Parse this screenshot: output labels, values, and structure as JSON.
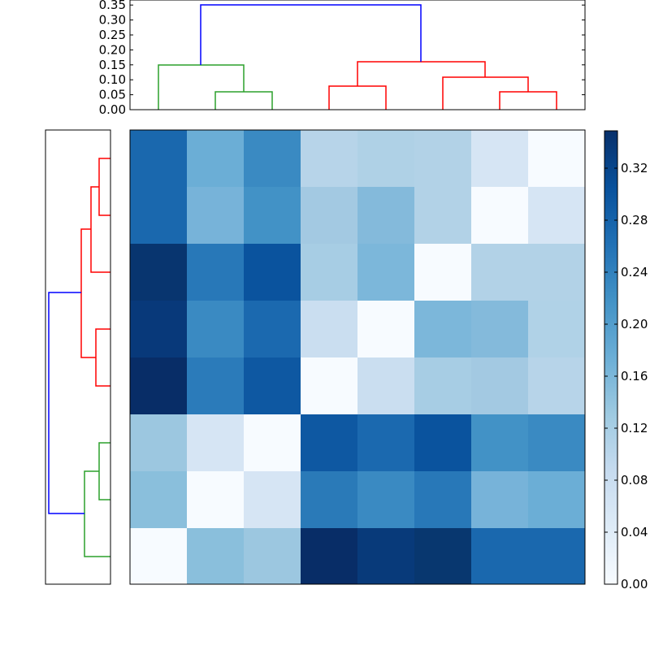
{
  "chart_data": [
    {
      "type": "dendrogram",
      "name": "column-dendrogram",
      "orientation": "top",
      "ylim": [
        0,
        0.36
      ],
      "yticks": [
        "0.00",
        "0.05",
        "0.10",
        "0.15",
        "0.20",
        "0.25",
        "0.30",
        "0.35"
      ],
      "leaves": 8,
      "links": [
        {
          "color": "#2ca02c",
          "leaves": [
            1,
            2
          ],
          "height": 0.06
        },
        {
          "color": "#2ca02c",
          "leaves": [
            0,
            "(1,2)"
          ],
          "height": 0.15
        },
        {
          "color": "#ff0000",
          "leaves": [
            3,
            4
          ],
          "height": 0.08
        },
        {
          "color": "#ff0000",
          "leaves": [
            6,
            7
          ],
          "height": 0.06
        },
        {
          "color": "#ff0000",
          "leaves": [
            5,
            "(6,7)"
          ],
          "height": 0.11
        },
        {
          "color": "#ff0000",
          "leaves": [
            "(3,4)",
            "(5,6,7)"
          ],
          "height": 0.16
        },
        {
          "color": "#0000ff",
          "leaves": [
            "green",
            "red"
          ],
          "height": 0.35
        }
      ]
    },
    {
      "type": "dendrogram",
      "name": "row-dendrogram",
      "orientation": "left",
      "leaves": 8,
      "links": [
        {
          "color": "#ff0000",
          "leaves": [
            0,
            1
          ],
          "height": 0.06
        },
        {
          "color": "#ff0000",
          "leaves": [
            "(0,1)",
            2
          ],
          "height": 0.11
        },
        {
          "color": "#ff0000",
          "leaves": [
            3,
            4
          ],
          "height": 0.08
        },
        {
          "color": "#ff0000",
          "leaves": [
            "(0,1,2)",
            "(3,4)"
          ],
          "height": 0.16
        },
        {
          "color": "#2ca02c",
          "leaves": [
            5,
            6
          ],
          "height": 0.06
        },
        {
          "color": "#2ca02c",
          "leaves": [
            "(5,6)",
            7
          ],
          "height": 0.15
        },
        {
          "color": "#0000ff",
          "leaves": [
            "red",
            "green"
          ],
          "height": 0.35
        }
      ]
    },
    {
      "type": "heatmap",
      "name": "distance-matrix",
      "colormap": "Blues",
      "rows": 8,
      "cols": 8,
      "values": [
        [
          0.27,
          0.17,
          0.22,
          0.1,
          0.11,
          0.105,
          0.05,
          0.0
        ],
        [
          0.27,
          0.16,
          0.21,
          0.12,
          0.15,
          0.105,
          0.0,
          0.05
        ],
        [
          0.34,
          0.25,
          0.3,
          0.12,
          0.16,
          0.0,
          0.105,
          0.105
        ],
        [
          0.33,
          0.22,
          0.27,
          0.07,
          0.0,
          0.16,
          0.15,
          0.11
        ],
        [
          0.35,
          0.24,
          0.3,
          0.0,
          0.07,
          0.12,
          0.12,
          0.1
        ],
        [
          0.12,
          0.05,
          0.0,
          0.3,
          0.27,
          0.31,
          0.21,
          0.22
        ],
        [
          0.14,
          0.0,
          0.05,
          0.25,
          0.22,
          0.25,
          0.16,
          0.17
        ],
        [
          0.0,
          0.14,
          0.12,
          0.35,
          0.33,
          0.34,
          0.27,
          0.27
        ]
      ],
      "colors": [
        [
          "#1a68ae",
          "#6baed6",
          "#3a8ac2",
          "#b7d4e9",
          "#afd1e6",
          "#b2d2e7",
          "#d6e5f4",
          "#f7fbff"
        ],
        [
          "#1a68ae",
          "#77b3d9",
          "#4292c6",
          "#a3c9e2",
          "#84badb",
          "#b2d2e7",
          "#f7fbff",
          "#d6e5f4"
        ],
        [
          "#08356f",
          "#2878b8",
          "#0a539e",
          "#a7cde4",
          "#7cb7da",
          "#f7fbff",
          "#b2d2e7",
          "#b2d2e7"
        ],
        [
          "#08397a",
          "#3a8ac2",
          "#1b69af",
          "#cadef0",
          "#f7fbff",
          "#7cb7da",
          "#84badb",
          "#b0d2e7"
        ],
        [
          "#082d67",
          "#2b7bba",
          "#0e58a2",
          "#f7fbff",
          "#cadef0",
          "#a7cde4",
          "#a3c9e2",
          "#b7d4e9"
        ],
        [
          "#9cc7e0",
          "#d6e5f4",
          "#f7fbff",
          "#0e58a2",
          "#1b69af",
          "#0a539e",
          "#4292c6",
          "#3a8ac2"
        ],
        [
          "#8abfdc",
          "#f7fbff",
          "#d6e5f4",
          "#2a7ab8",
          "#3a8ac2",
          "#2878b8",
          "#77b3d9",
          "#6baed6"
        ],
        [
          "#f7fbff",
          "#8abfdc",
          "#9cc7e0",
          "#082d67",
          "#083a7a",
          "#08376f",
          "#1a68ae",
          "#1a68ae"
        ]
      ]
    },
    {
      "type": "colorbar",
      "name": "colorbar",
      "range": [
        0.0,
        0.35
      ],
      "ticks": [
        "0.00",
        "0.04",
        "0.08",
        "0.12",
        "0.16",
        "0.20",
        "0.24",
        "0.28",
        "0.32"
      ]
    }
  ],
  "colors": {
    "green_cluster": "#2ca02c",
    "red_cluster": "#ff0000",
    "blue_link": "#0000ff",
    "axes": "#000000"
  }
}
